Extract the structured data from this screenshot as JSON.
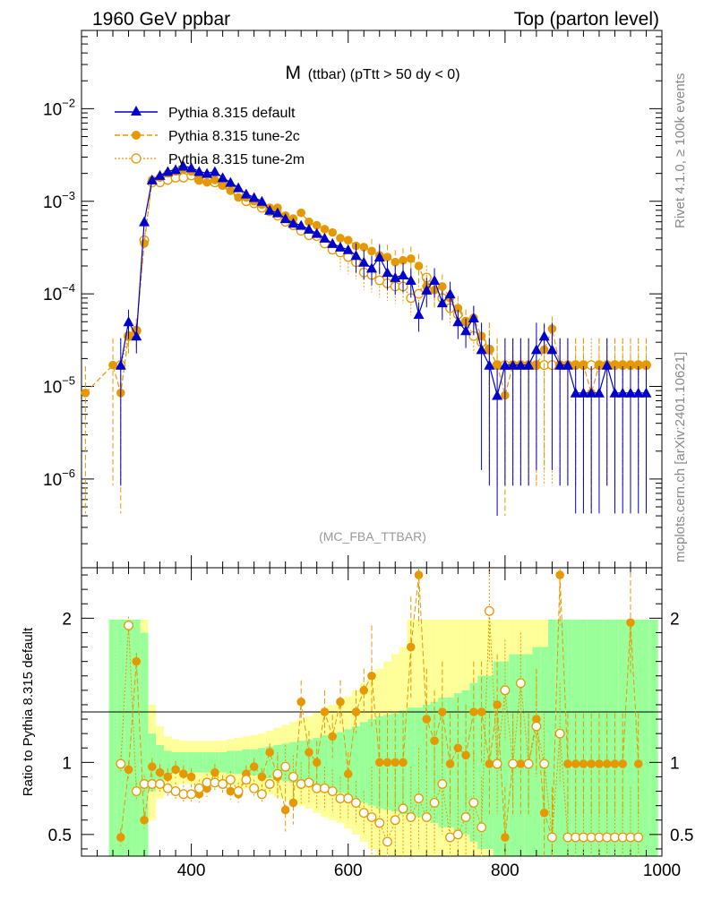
{
  "header": {
    "left": "1960 GeV ppbar",
    "right": "Top (parton level)"
  },
  "side": {
    "rivet": "Rivet 4.1.0, ≥ 100k events",
    "mcplots": "mcplots.cern.ch [arXiv:2401.10621]"
  },
  "chart_data": {
    "type": "line",
    "title": "M (ttbar) (pTtt > 50 dy < 0)",
    "title_main": "M",
    "title_sub": "(ttbar) (pTtt > 50 dy < 0)",
    "watermark": "(MC_FBA_TTBAR)",
    "xlabel": "",
    "ylabel": "",
    "xlim": [
      260,
      1000
    ],
    "ylim": [
      1.1e-07,
      0.07
    ],
    "yscale": "log",
    "xticks": [
      400,
      600,
      800,
      1000
    ],
    "xtick_labels": [
      "400",
      "600",
      "800",
      "1000"
    ],
    "yticks": [
      1e-06,
      1e-05,
      0.0001,
      0.001,
      0.01
    ],
    "ytick_labels": [
      {
        "base": "10",
        "exp": "−6"
      },
      {
        "base": "10",
        "exp": "−5"
      },
      {
        "base": "10",
        "exp": "−4"
      },
      {
        "base": "10",
        "exp": "−3"
      },
      {
        "base": "10",
        "exp": "−2"
      }
    ],
    "legend": [
      "Pythia 8.315 default",
      "Pythia 8.315 tune-2c",
      "Pythia 8.315 tune-2m"
    ],
    "legend_position": "top-left",
    "series": [
      {
        "name": "Pythia 8.315 default",
        "color": "#0000cc",
        "marker": "triangle",
        "x": [
          310,
          320,
          330,
          340,
          350,
          360,
          370,
          380,
          390,
          400,
          410,
          420,
          430,
          440,
          450,
          460,
          470,
          480,
          490,
          500,
          510,
          520,
          530,
          540,
          550,
          560,
          570,
          580,
          590,
          600,
          610,
          620,
          630,
          640,
          650,
          660,
          670,
          680,
          690,
          700,
          710,
          720,
          730,
          740,
          750,
          760,
          770,
          780,
          790,
          800,
          810,
          820,
          830,
          840,
          850,
          860,
          870,
          880,
          890,
          900,
          910,
          920,
          930,
          940,
          950,
          960,
          970,
          980
        ],
        "y": [
          1.7e-05,
          5e-05,
          3.5e-05,
          0.0006,
          0.0017,
          0.0019,
          0.0021,
          0.0022,
          0.0024,
          0.0023,
          0.0021,
          0.002,
          0.0021,
          0.0018,
          0.0016,
          0.0014,
          0.0012,
          0.0011,
          0.001,
          0.0008,
          0.00075,
          0.00065,
          0.00058,
          0.00055,
          0.0005,
          0.00045,
          0.0004,
          0.00035,
          0.00032,
          0.0003,
          0.00026,
          0.00022,
          0.00019,
          0.00025,
          0.00017,
          0.00015,
          0.00016,
          0.00014,
          6e-05,
          0.00011,
          0.00014,
          8e-05,
          0.0001,
          5e-05,
          4e-05,
          5.5e-05,
          2.5e-05,
          1.7e-05,
          8e-06,
          1.7e-05,
          1.7e-05,
          1.7e-05,
          1.7e-05,
          2.5e-05,
          3.5e-05,
          2.5e-05,
          1.7e-05,
          1.7e-05,
          8.5e-06,
          8.5e-06,
          8.5e-06,
          8.5e-06,
          1.7e-05,
          8.5e-06,
          8.5e-06,
          8.5e-06,
          8.5e-06,
          8.5e-06
        ]
      },
      {
        "name": "Pythia 8.315 tune-2c",
        "color": "#e69800",
        "marker": "filled-circle",
        "x": [
          265,
          300,
          310,
          320,
          330,
          340,
          350,
          360,
          370,
          380,
          390,
          400,
          410,
          420,
          430,
          440,
          450,
          460,
          470,
          480,
          490,
          500,
          510,
          520,
          530,
          540,
          550,
          560,
          570,
          580,
          590,
          600,
          610,
          620,
          630,
          640,
          650,
          660,
          670,
          680,
          690,
          700,
          710,
          720,
          730,
          740,
          750,
          760,
          770,
          780,
          790,
          800,
          810,
          820,
          830,
          840,
          850,
          860,
          870,
          880,
          890,
          900,
          910,
          920,
          930,
          940,
          950,
          960,
          970,
          980
        ],
        "y": [
          8.5e-06,
          1.7e-05,
          8.5e-06,
          3.5e-05,
          4e-05,
          0.00035,
          0.0017,
          0.0018,
          0.002,
          0.0021,
          0.0022,
          0.0021,
          0.0017,
          0.0016,
          0.0017,
          0.0015,
          0.0013,
          0.0011,
          0.0011,
          0.001,
          0.00092,
          0.00085,
          0.00085,
          0.0007,
          0.00065,
          0.00075,
          0.0006,
          0.00055,
          0.0005,
          0.00046,
          0.0004,
          0.00038,
          0.00033,
          0.00032,
          0.00029,
          0.00026,
          0.00025,
          0.00022,
          0.00023,
          0.00024,
          0.0002,
          0.00012,
          0.00011,
          0.00012,
          9e-05,
          7e-05,
          5e-05,
          5.5e-05,
          3.5e-05,
          2.5e-05,
          1.7e-05,
          8e-06,
          1.7e-05,
          1.7e-05,
          1.7e-05,
          1.7e-05,
          2.5e-05,
          4.2e-05,
          1.7e-05,
          1.7e-05,
          1.7e-05,
          1.7e-05,
          8.5e-06,
          1.7e-05,
          1.7e-05,
          1.7e-05,
          1.7e-05,
          1.7e-05,
          1.7e-05,
          1.7e-05
        ]
      },
      {
        "name": "Pythia 8.315 tune-2m",
        "color": "#e69800",
        "marker": "open-circle",
        "x": [
          310,
          320,
          330,
          340,
          350,
          360,
          370,
          380,
          390,
          400,
          410,
          420,
          430,
          440,
          450,
          460,
          470,
          480,
          490,
          500,
          510,
          520,
          530,
          540,
          550,
          560,
          570,
          580,
          590,
          600,
          610,
          620,
          630,
          640,
          650,
          660,
          670,
          680,
          690,
          700,
          710,
          720,
          730,
          740,
          750,
          760,
          770,
          780,
          790,
          800,
          810,
          820,
          830,
          840,
          850,
          860,
          870,
          880,
          890,
          900,
          910,
          920,
          930,
          940,
          950,
          960,
          970,
          980
        ],
        "y": [
          1.7e-05,
          3.5e-05,
          4e-05,
          0.00038,
          0.0016,
          0.0016,
          0.0017,
          0.0018,
          0.0018,
          0.0019,
          0.0017,
          0.0017,
          0.0016,
          0.0015,
          0.0014,
          0.0012,
          0.001,
          0.00095,
          0.00085,
          0.00078,
          0.0007,
          0.0006,
          0.00055,
          0.00048,
          0.00043,
          0.00042,
          0.00035,
          0.0003,
          0.00028,
          0.00025,
          0.00022,
          0.00017,
          0.00016,
          0.00014,
          0.00013,
          0.00012,
          0.00012,
          9e-05,
          0.0001,
          0.00015,
          0.00012,
          9e-05,
          7e-05,
          6e-05,
          5e-05,
          3.5e-05,
          3e-05,
          2.5e-05,
          1.7e-05,
          1.7e-05,
          1.7e-05,
          1.7e-05,
          1.7e-05,
          1.7e-05,
          1.7e-05,
          1.7e-05,
          1.7e-05,
          1.7e-05,
          1.7e-05,
          1.7e-05,
          1.7e-05,
          1.7e-05,
          1.7e-05,
          1.7e-05,
          1.7e-05,
          1.7e-05,
          1.7e-05,
          1.7e-05
        ]
      }
    ],
    "ratio": {
      "ylabel": "Ratio to Pythia 8.315 default",
      "ylim": [
        0.35,
        2.35
      ],
      "yticks": [
        0.5,
        1,
        2
      ],
      "ytick_labels": [
        "0.5",
        "1",
        "2"
      ],
      "bands": {
        "x": [
          300,
          310,
          320,
          330,
          340,
          350,
          360,
          370,
          380,
          390,
          400,
          410,
          420,
          430,
          440,
          450,
          460,
          470,
          480,
          490,
          500,
          510,
          520,
          530,
          540,
          550,
          560,
          570,
          580,
          590,
          600,
          610,
          620,
          630,
          640,
          650,
          660,
          670,
          680,
          690,
          700,
          710,
          720,
          730,
          740,
          750,
          760,
          770,
          780,
          790,
          800,
          810,
          820,
          830,
          840,
          850,
          860,
          870,
          880,
          890,
          900,
          910,
          920,
          930,
          940,
          950,
          960,
          970,
          980,
          990
        ],
        "green_half": [
          0.99,
          0.99,
          0.99,
          0.99,
          0.9,
          0.2,
          0.12,
          0.08,
          0.07,
          0.07,
          0.07,
          0.07,
          0.07,
          0.07,
          0.07,
          0.08,
          0.08,
          0.09,
          0.09,
          0.1,
          0.11,
          0.12,
          0.13,
          0.14,
          0.15,
          0.16,
          0.17,
          0.19,
          0.2,
          0.21,
          0.23,
          0.25,
          0.28,
          0.3,
          0.32,
          0.33,
          0.34,
          0.36,
          0.38,
          0.38,
          0.4,
          0.42,
          0.45,
          0.45,
          0.48,
          0.5,
          0.55,
          0.6,
          0.6,
          0.7,
          0.7,
          0.75,
          0.75,
          0.75,
          0.8,
          0.8,
          0.99,
          0.99,
          0.99,
          0.99,
          0.99,
          0.99,
          0.99,
          0.99,
          0.99,
          0.99,
          0.99,
          0.99,
          0.99,
          0.99
        ],
        "yellow_half": [
          0.99,
          0.99,
          0.99,
          0.99,
          0.99,
          0.4,
          0.25,
          0.18,
          0.16,
          0.15,
          0.15,
          0.15,
          0.15,
          0.15,
          0.15,
          0.16,
          0.17,
          0.18,
          0.19,
          0.2,
          0.22,
          0.24,
          0.26,
          0.28,
          0.3,
          0.32,
          0.35,
          0.38,
          0.4,
          0.42,
          0.46,
          0.5,
          0.55,
          0.6,
          0.65,
          0.7,
          0.75,
          0.8,
          0.99,
          0.99,
          0.99,
          0.99,
          0.99,
          0.99,
          0.99,
          0.99,
          0.99,
          0.99,
          0.99,
          0.99,
          0.99,
          0.99,
          0.99,
          0.99,
          0.99,
          0.99,
          0.99,
          0.99,
          0.99,
          0.99,
          0.99,
          0.99,
          0.99,
          0.99,
          0.99,
          0.99,
          0.99,
          0.99,
          0.99,
          0.99
        ]
      },
      "series": [
        {
          "name": "Pythia 8.315 tune-2c",
          "color": "#e69800",
          "marker": "filled-circle",
          "x": [
            310,
            320,
            330,
            340,
            350,
            360,
            370,
            380,
            390,
            400,
            410,
            420,
            430,
            440,
            450,
            460,
            470,
            480,
            490,
            500,
            510,
            520,
            530,
            540,
            550,
            560,
            570,
            580,
            590,
            600,
            610,
            620,
            630,
            640,
            650,
            660,
            670,
            680,
            690,
            700,
            710,
            720,
            730,
            740,
            750,
            760,
            770,
            780,
            790,
            800,
            810,
            820,
            830,
            840,
            850,
            860,
            870,
            880,
            890,
            900,
            910,
            920,
            930,
            940,
            950,
            960,
            970
          ],
          "y": [
            0.48,
            0.95,
            1.7,
            0.6,
            0.97,
            0.93,
            0.9,
            0.95,
            0.92,
            0.9,
            0.78,
            0.82,
            0.93,
            0.85,
            0.8,
            0.78,
            0.92,
            0.97,
            0.9,
            1.07,
            0.9,
            0.67,
            0.72,
            1.42,
            1.07,
            1.0,
            1.35,
            1.18,
            1.42,
            0.92,
            1.35,
            1.5,
            1.6,
            1.0,
            1.0,
            1.0,
            1.0,
            1.8,
            2.3,
            1.3,
            1.15,
            1.35,
            0.99,
            1.1,
            1.05,
            1.35,
            1.35,
            0.99,
            1.4,
            0.48,
            0.99,
            0.99,
            0.99,
            1.3,
            0.65,
            0.48,
            2.3,
            0.99,
            0.99,
            0.99,
            0.99,
            0.99,
            0.99,
            0.99,
            0.99,
            1.97,
            0.99
          ]
        },
        {
          "name": "Pythia 8.315 tune-2m",
          "color": "#e69800",
          "marker": "open-circle",
          "x": [
            310,
            320,
            330,
            340,
            350,
            360,
            370,
            380,
            390,
            400,
            410,
            420,
            430,
            440,
            450,
            460,
            470,
            480,
            490,
            500,
            510,
            520,
            530,
            540,
            550,
            560,
            570,
            580,
            590,
            600,
            610,
            620,
            630,
            640,
            650,
            660,
            670,
            680,
            690,
            700,
            710,
            720,
            730,
            740,
            750,
            760,
            770,
            780,
            790,
            800,
            810,
            820,
            830,
            840,
            850,
            860,
            870,
            880,
            890,
            900,
            910,
            920,
            930,
            940,
            950,
            960,
            970
          ],
          "y": [
            0.99,
            1.95,
            0.8,
            0.85,
            0.85,
            0.85,
            0.82,
            0.8,
            0.78,
            0.78,
            0.82,
            0.86,
            0.86,
            0.85,
            0.88,
            0.8,
            0.88,
            0.82,
            0.78,
            0.85,
            0.92,
            0.97,
            0.9,
            0.85,
            0.86,
            0.82,
            0.82,
            0.8,
            0.75,
            0.75,
            0.72,
            0.65,
            0.62,
            0.58,
            0.45,
            0.6,
            0.68,
            0.62,
            0.75,
            0.62,
            0.72,
            0.85,
            0.48,
            0.5,
            0.62,
            0.72,
            0.55,
            2.05,
            0.99,
            1.5,
            0.99,
            1.55,
            0.99,
            1.25,
            0.99,
            0.48,
            1.2,
            0.48,
            0.48,
            0.48,
            0.48,
            0.48,
            0.48,
            0.48,
            0.48,
            0.48,
            0.48
          ]
        }
      ]
    },
    "xaxis_ticks_labels": [
      "400",
      "600",
      "800",
      "1000"
    ]
  }
}
